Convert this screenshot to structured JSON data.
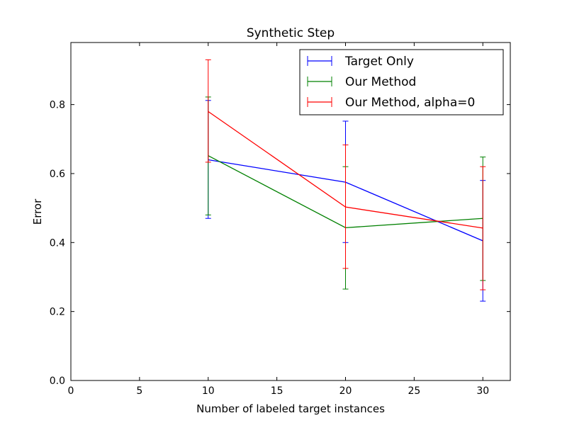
{
  "chart_data": {
    "type": "line",
    "title": "Synthetic Step",
    "xlabel": "Number of labeled target instances",
    "ylabel": "Error",
    "xlim": [
      0,
      32
    ],
    "ylim": [
      0,
      0.98
    ],
    "xticks": [
      0,
      5,
      10,
      15,
      20,
      25,
      30
    ],
    "yticks": [
      0.0,
      0.2,
      0.4,
      0.6,
      0.8
    ],
    "xtick_labels": [
      "0",
      "5",
      "10",
      "15",
      "20",
      "25",
      "30"
    ],
    "ytick_labels": [
      "0.0",
      "0.2",
      "0.4",
      "0.6",
      "0.8"
    ],
    "grid": false,
    "legend_position": "top-right",
    "series": [
      {
        "name": "Target Only",
        "color": "#0000ff",
        "x": [
          10,
          20,
          30
        ],
        "y": [
          0.64,
          0.575,
          0.405
        ],
        "err_low": [
          0.47,
          0.4,
          0.23
        ],
        "err_high": [
          0.812,
          0.752,
          0.58
        ]
      },
      {
        "name": "Our Method",
        "color": "#008000",
        "x": [
          10,
          20,
          30
        ],
        "y": [
          0.652,
          0.443,
          0.47
        ],
        "err_low": [
          0.48,
          0.265,
          0.29
        ],
        "err_high": [
          0.822,
          0.62,
          0.648
        ]
      },
      {
        "name": "Our Method, alpha=0",
        "color": "#ff0000",
        "x": [
          10,
          20,
          30
        ],
        "y": [
          0.78,
          0.503,
          0.442
        ],
        "err_low": [
          0.633,
          0.325,
          0.263
        ],
        "err_high": [
          0.93,
          0.683,
          0.62
        ]
      }
    ]
  }
}
